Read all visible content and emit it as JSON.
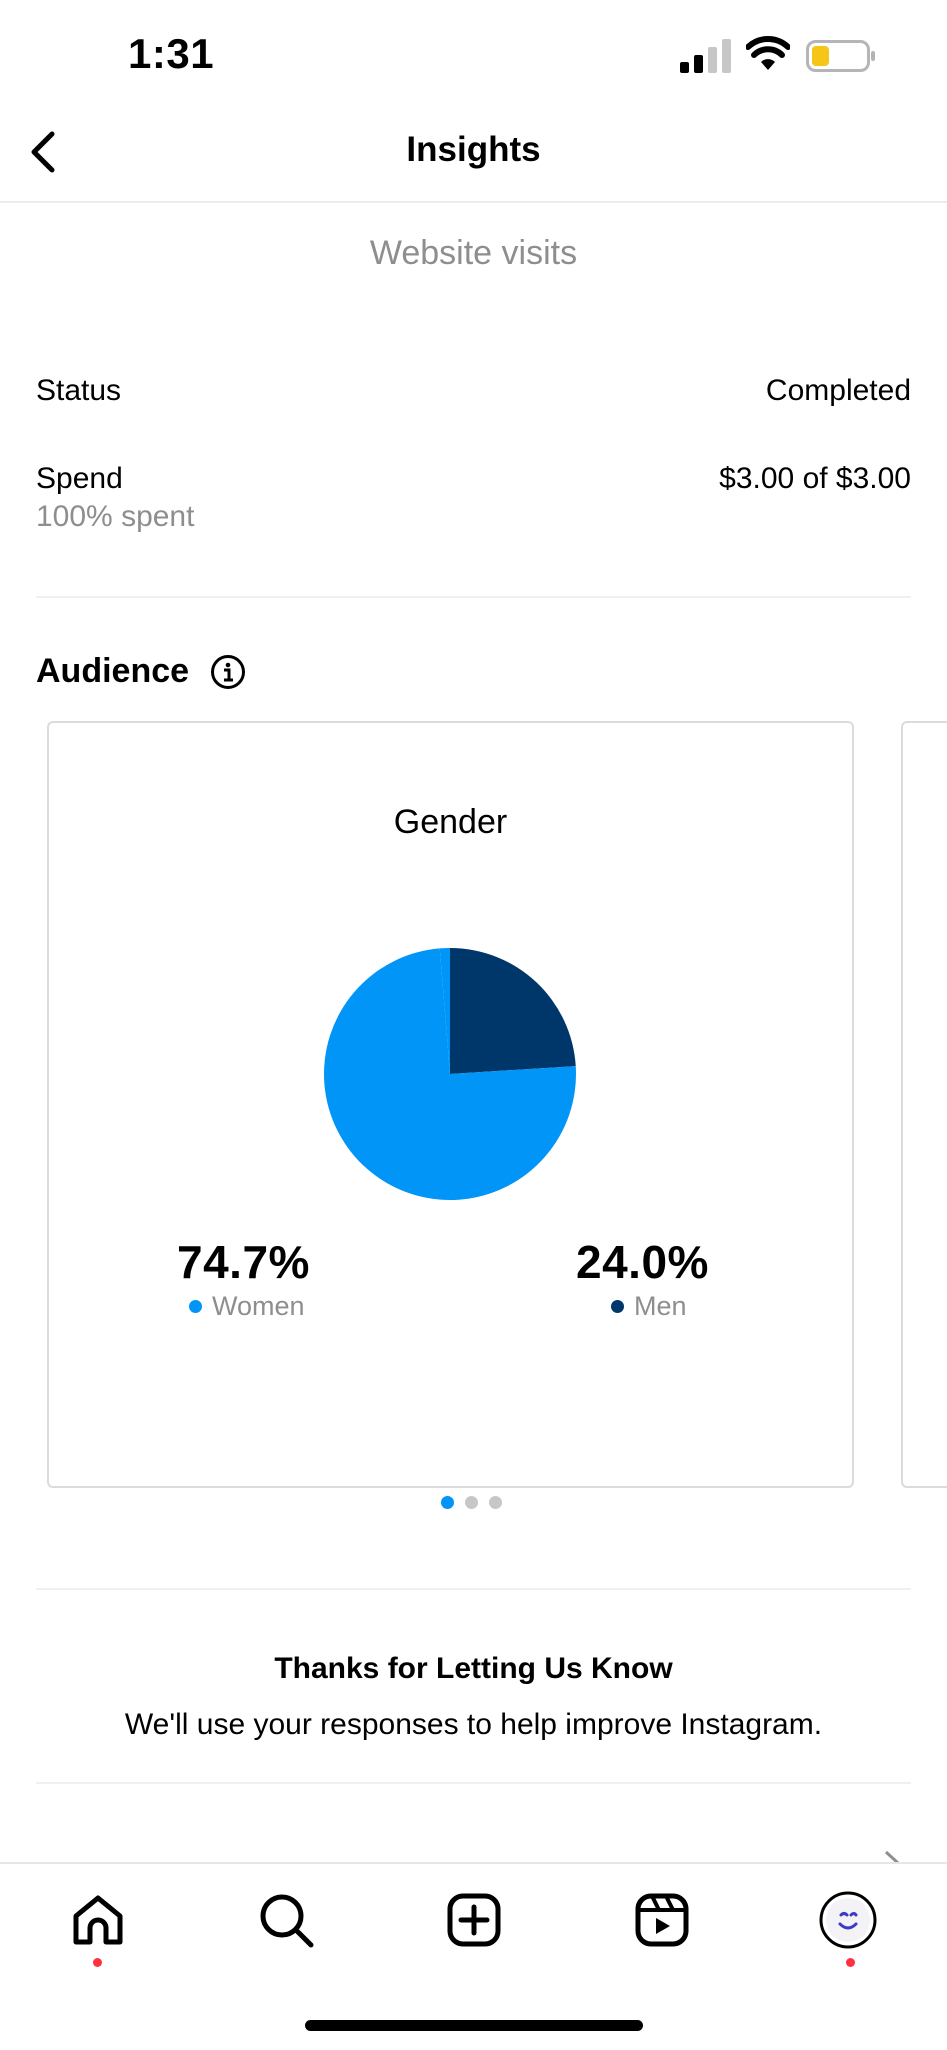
{
  "status_bar": {
    "time": "1:31"
  },
  "header": {
    "title": "Insights"
  },
  "ad": {
    "objective": "Website visits"
  },
  "details": [
    {
      "label": "Status",
      "value": "Completed"
    },
    {
      "label": "Spend",
      "value": "$3.00 of $3.00",
      "sub": "100% spent"
    }
  ],
  "audience": {
    "title": "Audience",
    "card": {
      "title": "Gender",
      "women": {
        "percent": "74.7%",
        "label": "Women"
      },
      "men": {
        "percent": "24.0%",
        "label": "Men"
      }
    },
    "pager": {
      "count": 3,
      "active": 0
    }
  },
  "chart_data": {
    "type": "pie",
    "title": "Gender",
    "categories": [
      "Women",
      "Men"
    ],
    "values": [
      74.7,
      24.0
    ],
    "colors": [
      "#0095f6",
      "#00376b"
    ]
  },
  "feedback": {
    "title": "Thanks for Letting Us Know",
    "body": "We'll use your responses to help improve Instagram."
  },
  "tabbar": {
    "items": [
      {
        "icon": "home-icon",
        "notification": true
      },
      {
        "icon": "search-icon",
        "notification": false
      },
      {
        "icon": "create-icon",
        "notification": false
      },
      {
        "icon": "reels-icon",
        "notification": false
      },
      {
        "icon": "profile-avatar",
        "notification": true
      }
    ]
  },
  "colors": {
    "accent": "#0095f6",
    "dark_series": "#00376b",
    "muted": "#8e8e8e",
    "notification": "#ff3040"
  }
}
